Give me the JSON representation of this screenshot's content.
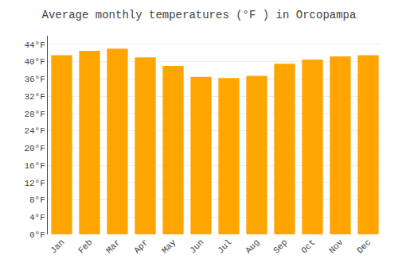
{
  "chart_data": {
    "type": "bar",
    "title": "Average monthly temperatures (°F ) in Orcopampa",
    "categories": [
      "Jan",
      "Feb",
      "Mar",
      "Apr",
      "May",
      "Jun",
      "Jul",
      "Aug",
      "Sep",
      "Oct",
      "Nov",
      "Dec"
    ],
    "values": [
      41.5,
      42.5,
      43.0,
      41.0,
      39.0,
      36.5,
      36.2,
      36.7,
      39.5,
      40.5,
      41.2,
      41.5
    ],
    "color": "#FFA500",
    "ylim": [
      0,
      46
    ],
    "yticks": [
      {
        "value": 0,
        "label": "0°F"
      },
      {
        "value": 4,
        "label": "4°F"
      },
      {
        "value": 8,
        "label": "8°F"
      },
      {
        "value": 12,
        "label": "12°F"
      },
      {
        "value": 16,
        "label": "16°F"
      },
      {
        "value": 20,
        "label": "20°F"
      },
      {
        "value": 24,
        "label": "24°F"
      },
      {
        "value": 28,
        "label": "28°F"
      },
      {
        "value": 32,
        "label": "32°F"
      },
      {
        "value": 36,
        "label": "36°F"
      },
      {
        "value": 40,
        "label": "40°F"
      },
      {
        "value": 44,
        "label": "44°F"
      }
    ],
    "grid": true
  }
}
